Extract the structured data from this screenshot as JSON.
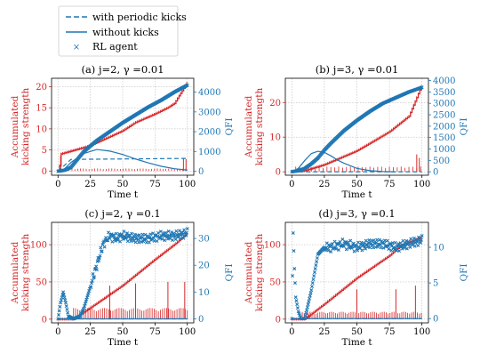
{
  "legend": {
    "entries": [
      {
        "label": "with periodic kicks",
        "style": "dashed",
        "color": "#1f77b4"
      },
      {
        "label": "without kicks",
        "style": "solid",
        "color": "#1f77b4"
      },
      {
        "label": "RL agent",
        "style": "marker",
        "color": "#1f77b4"
      }
    ]
  },
  "colors": {
    "left_axis": "#d62728",
    "right_axis": "#1f77b4",
    "grid": "#b0b0b0"
  },
  "chart_data": [
    {
      "type": "line",
      "title": "(a) j=2, γ =0.01",
      "xlabel": "Time t",
      "ylabel_left": "Accumulated kicking strength",
      "ylabel_right": "QFI",
      "xlim": [
        -5,
        105
      ],
      "xticks": [
        0,
        25,
        50,
        75,
        100
      ],
      "ylim_left": [
        -1,
        22
      ],
      "yticks_left": [
        0,
        5,
        10,
        15,
        20
      ],
      "ylim_right": [
        -200,
        4700
      ],
      "yticks_right": [
        0,
        1000,
        2000,
        3000,
        4000
      ],
      "grid": true,
      "accumulated": {
        "t": [
          0,
          1,
          2,
          25,
          50,
          60,
          75,
          85,
          90,
          95,
          100
        ],
        "y": [
          0,
          0.5,
          4,
          6,
          9.5,
          11.5,
          13.5,
          15,
          16,
          18.5,
          21
        ]
      },
      "spikes": {
        "t_start": 2,
        "t_end": 100,
        "step": 2.2,
        "base": 0.6,
        "big": [
          [
            2,
            3.6
          ],
          [
            97,
            3.0
          ],
          [
            99,
            2.8
          ]
        ]
      },
      "qfi_rl": {
        "t": [
          0,
          5,
          10,
          20,
          30,
          40,
          50,
          60,
          70,
          80,
          90,
          100
        ],
        "y": [
          0,
          50,
          200,
          1000,
          1550,
          2000,
          2450,
          2850,
          3250,
          3600,
          4000,
          4350
        ]
      },
      "qfi_periodic": {
        "t": [
          0,
          10,
          100
        ],
        "y": [
          0,
          600,
          650
        ]
      },
      "qfi_without": {
        "t": [
          0,
          5,
          10,
          20,
          30,
          40,
          50,
          60,
          70,
          80,
          90,
          100
        ],
        "y": [
          0,
          120,
          450,
          900,
          1100,
          1020,
          850,
          620,
          420,
          250,
          130,
          60
        ]
      }
    },
    {
      "type": "line",
      "title": "(b) j=3, γ =0.01",
      "xlabel": "Time t",
      "ylabel_left": "Accumulated kicking strength",
      "ylabel_right": "QFI",
      "xlim": [
        -5,
        105
      ],
      "xticks": [
        0,
        25,
        50,
        75,
        100
      ],
      "ylim_left": [
        -1,
        27
      ],
      "yticks_left": [
        0,
        10,
        20
      ],
      "ylim_right": [
        -150,
        4100
      ],
      "yticks_right": [
        0,
        500,
        1000,
        1500,
        2000,
        2500,
        3000,
        3500,
        4000
      ],
      "grid": true,
      "accumulated": {
        "t": [
          0,
          10,
          25,
          50,
          75,
          90,
          95,
          100
        ],
        "y": [
          0,
          0.3,
          2,
          6,
          11.5,
          16,
          20.5,
          25
        ]
      },
      "spikes": {
        "t_start": 3,
        "t_end": 100,
        "step": 3.0,
        "base": 1.5,
        "big": [
          [
            96,
            5.0
          ],
          [
            98,
            4.0
          ]
        ]
      },
      "qfi_rl": {
        "t": [
          0,
          5,
          10,
          15,
          20,
          25,
          30,
          40,
          50,
          60,
          70,
          80,
          90,
          100
        ],
        "y": [
          0,
          50,
          150,
          350,
          600,
          950,
          1250,
          1800,
          2250,
          2650,
          3000,
          3250,
          3500,
          3700
        ]
      },
      "qfi_periodic": {
        "t": [
          0,
          100
        ],
        "y": [
          0,
          0
        ]
      },
      "qfi_without": {
        "t": [
          0,
          5,
          10,
          15,
          20,
          25,
          30,
          35,
          40,
          50,
          60,
          70,
          80
        ],
        "y": [
          0,
          150,
          500,
          800,
          900,
          850,
          700,
          520,
          380,
          150,
          50,
          10,
          0
        ]
      }
    },
    {
      "type": "line",
      "title": "(c) j=2, γ =0.1",
      "xlabel": "Time t",
      "ylabel_left": "Accumulated kicking strength",
      "ylabel_right": "QFI",
      "xlim": [
        -5,
        105
      ],
      "xticks": [
        0,
        25,
        50,
        75,
        100
      ],
      "ylim_left": [
        -5,
        130
      ],
      "yticks_left": [
        0,
        50,
        100
      ],
      "ylim_right": [
        -1.5,
        36
      ],
      "yticks_right": [
        0,
        10,
        20,
        30
      ],
      "grid": true,
      "accumulated": {
        "t": [
          0,
          12,
          25,
          50,
          75,
          90,
          100
        ],
        "y": [
          0,
          0,
          15,
          45,
          80,
          100,
          115
        ]
      },
      "spikes": {
        "t_start": 12,
        "t_end": 100,
        "step": 1.6,
        "base": 15,
        "big": [
          [
            40,
            45
          ],
          [
            60,
            48
          ],
          [
            85,
            50
          ],
          [
            98,
            50
          ]
        ]
      },
      "qfi_rl": {
        "t": [
          0,
          2,
          4,
          6,
          8,
          12,
          17,
          20,
          25,
          30,
          35,
          40,
          45,
          50,
          60,
          70,
          80,
          90,
          100
        ],
        "y": [
          0,
          6,
          10,
          6,
          1,
          0,
          1,
          4,
          12,
          20,
          28,
          31,
          30,
          31,
          30,
          30,
          31,
          31,
          32
        ]
      },
      "qfi_periodic": {
        "t": [
          0,
          100
        ],
        "y": [
          0,
          0
        ]
      },
      "qfi_without": {
        "t": [
          0,
          100
        ],
        "y": [
          0,
          0
        ]
      }
    },
    {
      "type": "line",
      "title": "(d) j=3, γ =0.1",
      "xlabel": "Time t",
      "ylabel_left": "Accumulated kicking strength",
      "ylabel_right": "QFI",
      "xlim": [
        -5,
        105
      ],
      "xticks": [
        0,
        25,
        50,
        75,
        100
      ],
      "ylim_left": [
        -5,
        130
      ],
      "yticks_left": [
        0,
        50,
        100
      ],
      "ylim_right": [
        -0.6,
        13.5
      ],
      "yticks_right": [
        0,
        5,
        10
      ],
      "grid": true,
      "accumulated": {
        "t": [
          0,
          10,
          25,
          50,
          75,
          85,
          100
        ],
        "y": [
          0,
          0,
          20,
          55,
          85,
          100,
          110
        ]
      },
      "spikes": {
        "t_start": 8,
        "t_end": 100,
        "step": 1.5,
        "base": 10,
        "big": [
          [
            50,
            40
          ],
          [
            80,
            40
          ],
          [
            95,
            45
          ]
        ]
      },
      "qfi_rl": {
        "t": [
          0,
          1,
          2,
          3,
          5,
          7,
          10,
          15,
          20,
          25,
          30,
          40,
          50,
          60,
          70,
          80,
          90,
          100
        ],
        "y": [
          0,
          12,
          7,
          3,
          1,
          0,
          0,
          4,
          9,
          10,
          10,
          10.5,
          10,
          10.5,
          10.5,
          10,
          10.5,
          11
        ]
      },
      "qfi_periodic": {
        "t": [
          0,
          100
        ],
        "y": [
          0,
          0
        ]
      },
      "qfi_without": {
        "t": [
          0,
          100
        ],
        "y": [
          0,
          0
        ]
      }
    }
  ]
}
